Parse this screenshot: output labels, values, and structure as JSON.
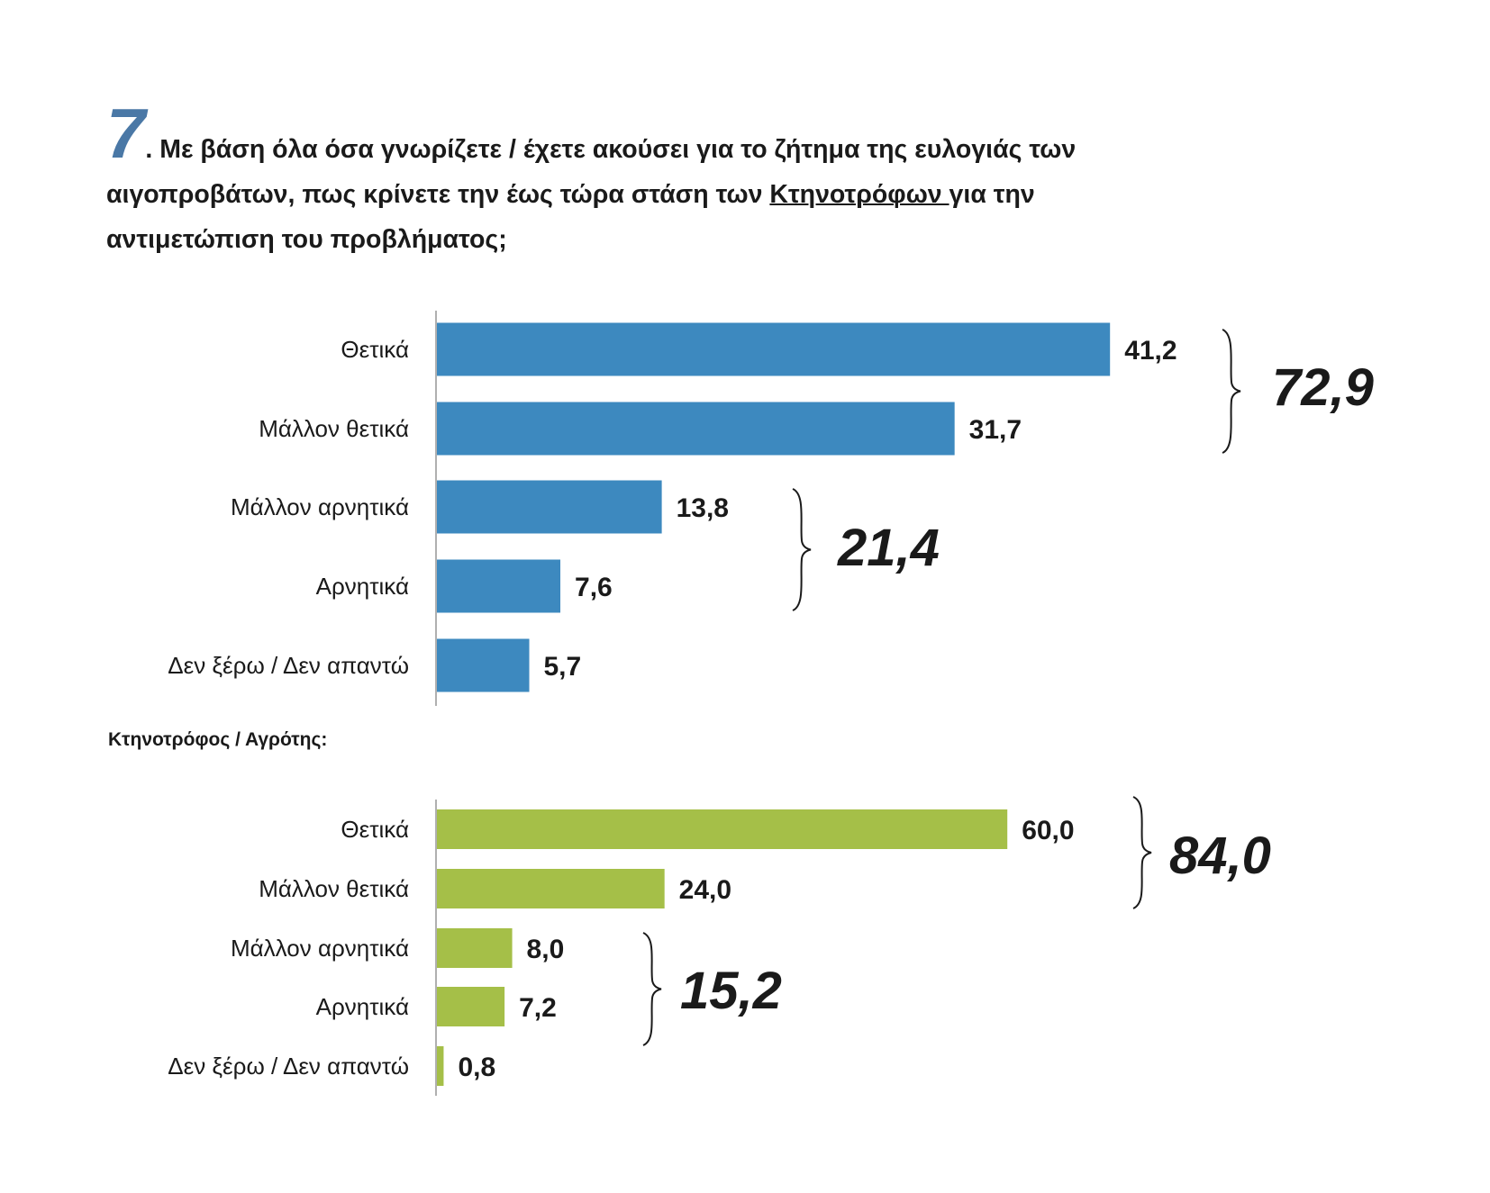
{
  "question": {
    "number": "7",
    "line1": ". Με βάση όλα όσα γνωρίζετε / έχετε ακούσει για το ζήτημα της ευλογιάς των",
    "line2_a": "αιγοπροβάτων, πως κρίνετε την έως τώρα στάση των ",
    "line2_underlined": "Κτηνοτρόφων ",
    "line2_b": "για την",
    "line3": "αντιμετώπιση του προβλήματος;"
  },
  "subgroup_label": "Κτηνοτρόφος / Αγρότης:",
  "colors": {
    "number": "#4a78a6",
    "blue": "#3d89bf",
    "green": "#a5bf48"
  },
  "chart_data": [
    {
      "type": "bar",
      "orientation": "horizontal",
      "categories": [
        "Θετικά",
        "Μάλλον θετικά",
        "Μάλλον αρνητικά",
        "Αρνητικά",
        "Δεν ξέρω / Δεν απαντώ"
      ],
      "values": [
        41.2,
        31.7,
        13.8,
        7.6,
        5.7
      ],
      "value_labels": [
        "41,2",
        "31,7",
        "13,8",
        "7,6",
        "5,7"
      ],
      "color": "#3d89bf",
      "group_totals": [
        {
          "categories": [
            "Θετικά",
            "Μάλλον θετικά"
          ],
          "label": "72,9"
        },
        {
          "categories": [
            "Μάλλον αρνητικά",
            "Αρνητικά"
          ],
          "label": "21,4"
        }
      ]
    },
    {
      "type": "bar",
      "orientation": "horizontal",
      "title": "Κτηνοτρόφος / Αγρότης:",
      "categories": [
        "Θετικά",
        "Μάλλον θετικά",
        "Μάλλον αρνητικά",
        "Αρνητικά",
        "Δεν ξέρω / Δεν απαντώ"
      ],
      "values": [
        60.0,
        24.0,
        8.0,
        7.2,
        0.8
      ],
      "value_labels": [
        "60,0",
        "24,0",
        "8,0",
        "7,2",
        "0,8"
      ],
      "color": "#a5bf48",
      "group_totals": [
        {
          "categories": [
            "Θετικά",
            "Μάλλον θετικά"
          ],
          "label": "84,0"
        },
        {
          "categories": [
            "Μάλλον αρνητικά",
            "Αρνητικά"
          ],
          "label": "15,2"
        }
      ]
    }
  ]
}
